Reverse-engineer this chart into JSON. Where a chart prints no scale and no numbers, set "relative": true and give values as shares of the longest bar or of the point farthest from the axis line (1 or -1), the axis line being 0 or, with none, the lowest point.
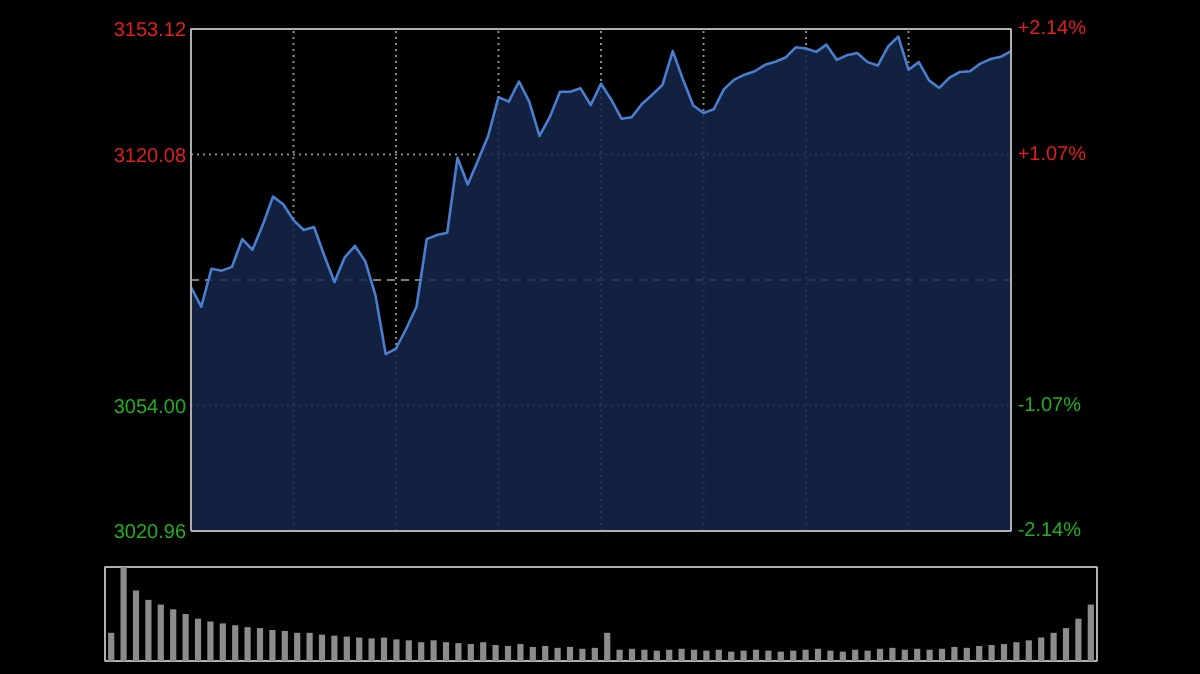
{
  "chart_data": [
    {
      "type": "area",
      "categories": [
        null,
        null,
        null,
        null,
        null,
        null,
        null,
        null,
        null,
        null,
        null,
        null,
        null,
        null,
        null,
        null,
        null,
        null,
        null,
        null,
        null,
        null,
        null,
        null,
        null,
        null,
        null,
        null,
        null,
        null,
        null,
        null,
        null,
        null,
        null,
        null,
        null,
        null,
        null,
        null,
        null,
        null,
        null,
        null,
        null,
        null,
        null,
        null,
        null,
        null,
        null,
        null,
        null,
        null,
        null,
        null,
        null,
        null,
        null,
        null,
        null,
        null,
        null,
        null,
        null,
        null,
        null,
        null,
        null,
        null,
        null,
        null,
        null,
        null,
        null,
        null,
        null,
        null,
        null,
        null,
        null
      ],
      "ylim": [
        3020.96,
        3153.12
      ],
      "yticks": [
        3020.96,
        {
          "value": 3054,
          "label": "3054.00"
        },
        3120.08,
        3153.12
      ],
      "y2lim": [
        -2.14,
        2.14
      ],
      "y2ticks": [
        {
          "value": -2.14,
          "label": "-2.14%"
        },
        {
          "value": -1.07,
          "label": "-1.07%"
        },
        {
          "value": 1.07,
          "label": "+1.07%"
        },
        {
          "value": 2.14,
          "label": "+2.14%"
        }
      ],
      "ref_lines": [
        {
          "axis": "y",
          "value": 3087.04,
          "label": null,
          "color": "#7f7f7f",
          "line_style": "dashed"
        }
      ],
      "grid": true,
      "series": [
        {
          "color": "#4a7fd0",
          "values": [
            3085.2,
            3080,
            3090,
            3089.5,
            3090.5,
            3097.8,
            3095,
            3101.5,
            3109,
            3107,
            3102.8,
            3100.2,
            3101,
            3093.5,
            3086.5,
            3093,
            3096,
            3092,
            3083,
            3067.5,
            3069,
            3074.2,
            3080,
            3097.8,
            3098.9,
            3099.5,
            3119.2,
            3112.2,
            3118.5,
            3125,
            3135.2,
            3134,
            3139.3,
            3134,
            3125,
            3129.9,
            3136.6,
            3136.6,
            3137.5,
            3133.1,
            3138.7,
            3134.5,
            3129.5,
            3129.9,
            3133.4,
            3135.8,
            3138.4,
            3147.3,
            3139.8,
            3133,
            3131,
            3132,
            3137.3,
            3139.8,
            3141.1,
            3142,
            3143.7,
            3144.5,
            3145.6,
            3148.3,
            3148,
            3147.1,
            3149,
            3145,
            3146.2,
            3146.8,
            3144.4,
            3143.5,
            3148.5,
            3151.1,
            3142.4,
            3144.4,
            3139.6,
            3137.6,
            3140.3,
            3141.8,
            3142,
            3144,
            3145.2,
            3145.8,
            3147.3
          ]
        }
      ]
    },
    {
      "type": "bar",
      "relative": true,
      "categories": [
        null,
        null,
        null,
        null,
        null,
        null,
        null,
        null,
        null,
        null,
        null,
        null,
        null,
        null,
        null,
        null,
        null,
        null,
        null,
        null,
        null,
        null,
        null,
        null,
        null,
        null,
        null,
        null,
        null,
        null,
        null,
        null,
        null,
        null,
        null,
        null,
        null,
        null,
        null,
        null,
        null,
        null,
        null,
        null,
        null,
        null,
        null,
        null,
        null,
        null,
        null,
        null,
        null,
        null,
        null,
        null,
        null,
        null,
        null,
        null,
        null,
        null,
        null,
        null,
        null,
        null,
        null,
        null,
        null,
        null,
        null,
        null,
        null,
        null,
        null,
        null,
        null,
        null,
        null,
        null
      ],
      "series": [
        {
          "color": "#8c8c8c",
          "values": [
            0.3,
            1.0,
            0.75,
            0.65,
            0.6,
            0.55,
            0.5,
            0.45,
            0.42,
            0.4,
            0.38,
            0.36,
            0.35,
            0.33,
            0.32,
            0.3,
            0.3,
            0.28,
            0.27,
            0.26,
            0.25,
            0.24,
            0.25,
            0.23,
            0.22,
            0.2,
            0.22,
            0.2,
            0.19,
            0.18,
            0.2,
            0.17,
            0.16,
            0.18,
            0.15,
            0.16,
            0.14,
            0.15,
            0.13,
            0.14,
            0.3,
            0.12,
            0.13,
            0.12,
            0.11,
            0.12,
            0.13,
            0.12,
            0.11,
            0.12,
            0.1,
            0.11,
            0.12,
            0.11,
            0.1,
            0.11,
            0.12,
            0.13,
            0.11,
            0.1,
            0.12,
            0.11,
            0.13,
            0.14,
            0.12,
            0.13,
            0.12,
            0.13,
            0.15,
            0.14,
            0.16,
            0.17,
            0.18,
            0.2,
            0.22,
            0.25,
            0.3,
            0.35,
            0.45,
            0.6
          ]
        }
      ]
    }
  ]
}
